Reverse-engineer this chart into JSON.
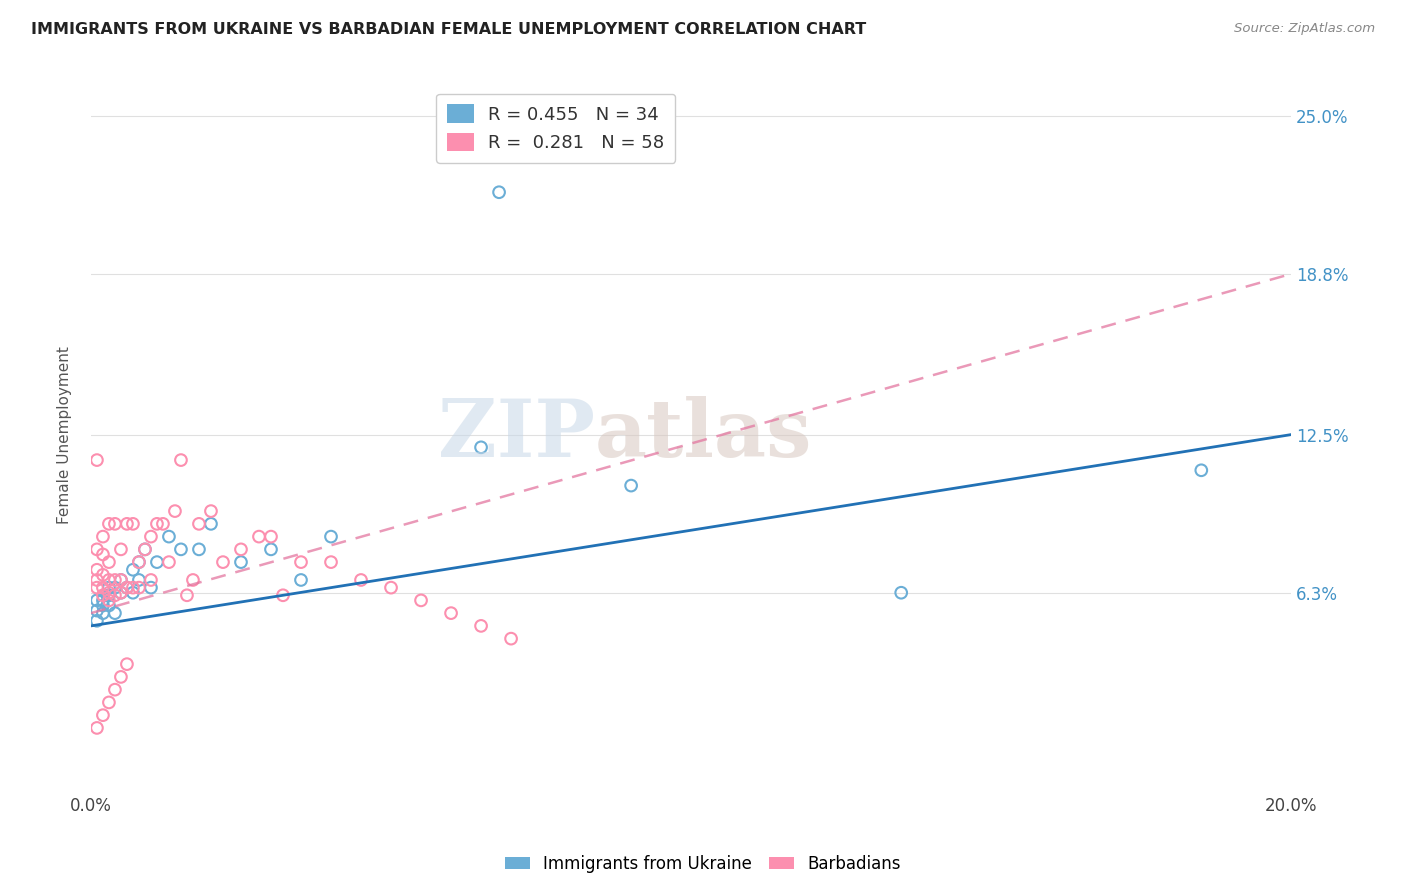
{
  "title": "IMMIGRANTS FROM UKRAINE VS BARBADIAN FEMALE UNEMPLOYMENT CORRELATION CHART",
  "source": "Source: ZipAtlas.com",
  "ylabel": "Female Unemployment",
  "x_min": 0.0,
  "x_max": 0.2,
  "y_min": -0.015,
  "y_max": 0.265,
  "y_ticks": [
    0.063,
    0.125,
    0.188,
    0.25
  ],
  "y_tick_labels": [
    "6.3%",
    "12.5%",
    "18.8%",
    "25.0%"
  ],
  "ukraine_R": 0.455,
  "ukraine_N": 34,
  "barbadian_R": 0.281,
  "barbadian_N": 58,
  "ukraine_color": "#6baed6",
  "barbadian_color": "#fc8faf",
  "ukraine_line_color": "#2171b5",
  "barbadian_line_color": "#e377a0",
  "background_color": "#ffffff",
  "grid_color": "#e0e0e0",
  "ukraine_scatter_x": [
    0.001,
    0.001,
    0.002,
    0.002,
    0.003,
    0.003,
    0.004,
    0.004,
    0.005,
    0.005,
    0.006,
    0.007,
    0.007,
    0.008,
    0.008,
    0.009,
    0.01,
    0.011,
    0.013,
    0.015,
    0.018,
    0.02,
    0.025,
    0.03,
    0.035,
    0.04,
    0.065,
    0.09,
    0.135,
    0.185,
    0.001,
    0.002,
    0.003,
    0.068
  ],
  "ukraine_scatter_y": [
    0.056,
    0.06,
    0.055,
    0.06,
    0.062,
    0.065,
    0.065,
    0.055,
    0.063,
    0.068,
    0.065,
    0.072,
    0.063,
    0.075,
    0.068,
    0.08,
    0.065,
    0.075,
    0.085,
    0.08,
    0.08,
    0.09,
    0.075,
    0.08,
    0.068,
    0.085,
    0.12,
    0.105,
    0.063,
    0.111,
    0.052,
    0.058,
    0.058,
    0.22
  ],
  "barbadian_scatter_x": [
    0.001,
    0.001,
    0.001,
    0.001,
    0.001,
    0.002,
    0.002,
    0.002,
    0.002,
    0.002,
    0.003,
    0.003,
    0.003,
    0.003,
    0.003,
    0.004,
    0.004,
    0.004,
    0.005,
    0.005,
    0.005,
    0.006,
    0.006,
    0.007,
    0.007,
    0.008,
    0.008,
    0.009,
    0.01,
    0.01,
    0.011,
    0.012,
    0.013,
    0.014,
    0.015,
    0.016,
    0.017,
    0.018,
    0.02,
    0.022,
    0.025,
    0.028,
    0.03,
    0.032,
    0.035,
    0.04,
    0.045,
    0.05,
    0.055,
    0.06,
    0.065,
    0.07,
    0.001,
    0.002,
    0.003,
    0.004,
    0.005,
    0.006
  ],
  "barbadian_scatter_y": [
    0.065,
    0.068,
    0.072,
    0.08,
    0.115,
    0.062,
    0.065,
    0.07,
    0.078,
    0.085,
    0.06,
    0.063,
    0.068,
    0.075,
    0.09,
    0.062,
    0.068,
    0.09,
    0.063,
    0.068,
    0.08,
    0.065,
    0.09,
    0.065,
    0.09,
    0.065,
    0.075,
    0.08,
    0.068,
    0.085,
    0.09,
    0.09,
    0.075,
    0.095,
    0.115,
    0.062,
    0.068,
    0.09,
    0.095,
    0.075,
    0.08,
    0.085,
    0.085,
    0.062,
    0.075,
    0.075,
    0.068,
    0.065,
    0.06,
    0.055,
    0.05,
    0.045,
    0.01,
    0.015,
    0.02,
    0.025,
    0.03,
    0.035
  ],
  "ukraine_line_x": [
    0.0,
    0.2
  ],
  "ukraine_line_y": [
    0.05,
    0.125
  ],
  "barbadian_line_x": [
    0.0,
    0.2
  ],
  "barbadian_line_y": [
    0.055,
    0.188
  ],
  "watermark_zip": "ZIP",
  "watermark_atlas": "atlas",
  "legend_ukraine_label": "Immigrants from Ukraine",
  "legend_barbadian_label": "Barbadians"
}
